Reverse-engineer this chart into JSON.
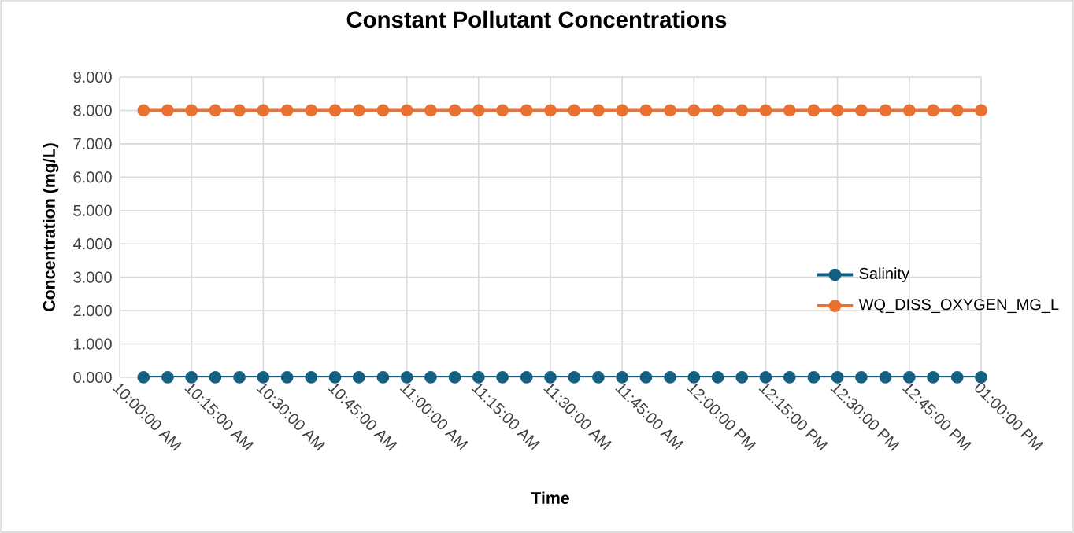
{
  "chart_data": {
    "type": "line",
    "title": "Constant Pollutant Concentrations",
    "xlabel": "Time",
    "ylabel": "Concentration (mg/L)",
    "x": [
      10.083,
      10.167,
      10.25,
      10.333,
      10.417,
      10.5,
      10.583,
      10.667,
      10.75,
      10.833,
      10.917,
      11,
      11.083,
      11.167,
      11.25,
      11.333,
      11.417,
      11.5,
      11.583,
      11.667,
      11.75,
      11.833,
      11.917,
      12,
      12.083,
      12.167,
      12.25,
      12.333,
      12.417,
      12.5,
      12.583,
      12.667,
      12.75,
      12.833,
      12.917,
      13
    ],
    "series": [
      {
        "name": "Salinity",
        "color": "#156082",
        "values": [
          0,
          0,
          0,
          0,
          0,
          0,
          0,
          0,
          0,
          0,
          0,
          0,
          0,
          0,
          0,
          0,
          0,
          0,
          0,
          0,
          0,
          0,
          0,
          0,
          0,
          0,
          0,
          0,
          0,
          0,
          0,
          0,
          0,
          0,
          0,
          0
        ]
      },
      {
        "name": "WQ_DISS_OXYGEN_MG_L",
        "color": "#e97132",
        "values": [
          8,
          8,
          8,
          8,
          8,
          8,
          8,
          8,
          8,
          8,
          8,
          8,
          8,
          8,
          8,
          8,
          8,
          8,
          8,
          8,
          8,
          8,
          8,
          8,
          8,
          8,
          8,
          8,
          8,
          8,
          8,
          8,
          8,
          8,
          8,
          8
        ]
      }
    ],
    "xlim": [
      10,
      13
    ],
    "xticks": [
      {
        "value": 10,
        "label": "10:00:00 AM"
      },
      {
        "value": 10.25,
        "label": "10:15:00 AM"
      },
      {
        "value": 10.5,
        "label": "10:30:00 AM"
      },
      {
        "value": 10.75,
        "label": "10:45:00 AM"
      },
      {
        "value": 11,
        "label": "11:00:00 AM"
      },
      {
        "value": 11.25,
        "label": "11:15:00 AM"
      },
      {
        "value": 11.5,
        "label": "11:30:00 AM"
      },
      {
        "value": 11.75,
        "label": "11:45:00 AM"
      },
      {
        "value": 12,
        "label": "12:00:00 PM"
      },
      {
        "value": 12.25,
        "label": "12:15:00 PM"
      },
      {
        "value": 12.5,
        "label": "12:30:00 PM"
      },
      {
        "value": 12.75,
        "label": "12:45:00 PM"
      },
      {
        "value": 13,
        "label": "01:00:00 PM"
      }
    ],
    "ylim": [
      0,
      9
    ],
    "yticks": [
      {
        "value": 0,
        "label": "0.000"
      },
      {
        "value": 1,
        "label": "1.000"
      },
      {
        "value": 2,
        "label": "2.000"
      },
      {
        "value": 3,
        "label": "3.000"
      },
      {
        "value": 4,
        "label": "4.000"
      },
      {
        "value": 5,
        "label": "5.000"
      },
      {
        "value": 6,
        "label": "6.000"
      },
      {
        "value": 7,
        "label": "7.000"
      },
      {
        "value": 8,
        "label": "8.000"
      },
      {
        "value": 9,
        "label": "9.000"
      }
    ],
    "grid": true,
    "legend": "right",
    "marker": "circle",
    "line_style": "solid"
  }
}
